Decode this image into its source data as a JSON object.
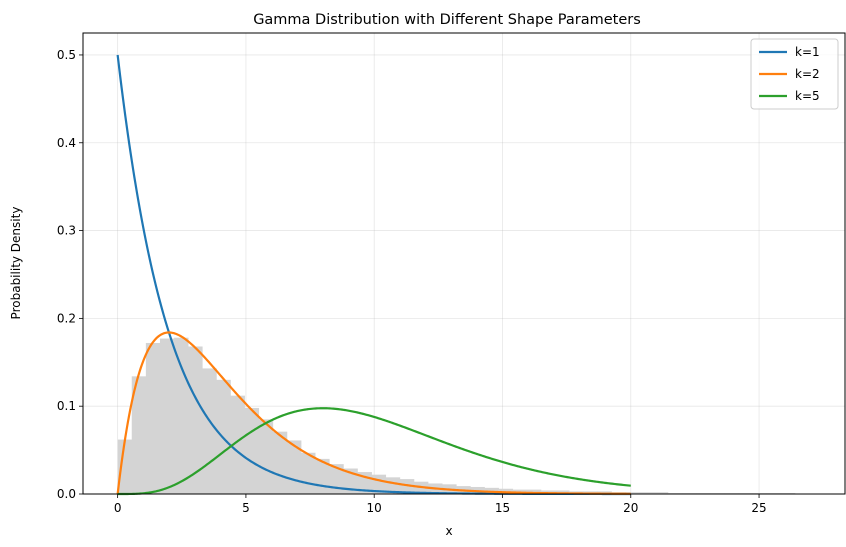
{
  "chart_data": {
    "type": "line",
    "title": "Gamma Distribution with Different Shape Parameters",
    "xlabel": "x",
    "ylabel": "Probability Density",
    "xlim": [
      -1.35,
      28.35
    ],
    "ylim": [
      0,
      0.525
    ],
    "xticks": [
      0,
      5,
      10,
      15,
      20,
      25
    ],
    "yticks": [
      0.0,
      0.1,
      0.2,
      0.3,
      0.4,
      0.5
    ],
    "grid": true,
    "legend_position": "top-right",
    "scale_theta": 2,
    "x_range": [
      0,
      20
    ],
    "series": [
      {
        "name": "k=1",
        "shape": 1,
        "color": "#1f77b4"
      },
      {
        "name": "k=2",
        "shape": 2,
        "color": "#ff7f0e"
      },
      {
        "name": "k=5",
        "shape": 5,
        "color": "#2ca02c"
      }
    ],
    "histogram": {
      "color": "#d4d4d4",
      "bin_width": 0.55,
      "start": 0,
      "heights": [
        0.062,
        0.134,
        0.172,
        0.177,
        0.178,
        0.168,
        0.143,
        0.13,
        0.112,
        0.098,
        0.085,
        0.071,
        0.061,
        0.047,
        0.04,
        0.034,
        0.029,
        0.025,
        0.022,
        0.019,
        0.017,
        0.014,
        0.012,
        0.011,
        0.009,
        0.008,
        0.007,
        0.006,
        0.005,
        0.005,
        0.004,
        0.004,
        0.003,
        0.003,
        0.003,
        0.002,
        0.002,
        0.002,
        0.002,
        0.001,
        0.001,
        0.001,
        0.001,
        0.001,
        0.001,
        0.001,
        0.001,
        0.001,
        0.0005
      ]
    }
  }
}
